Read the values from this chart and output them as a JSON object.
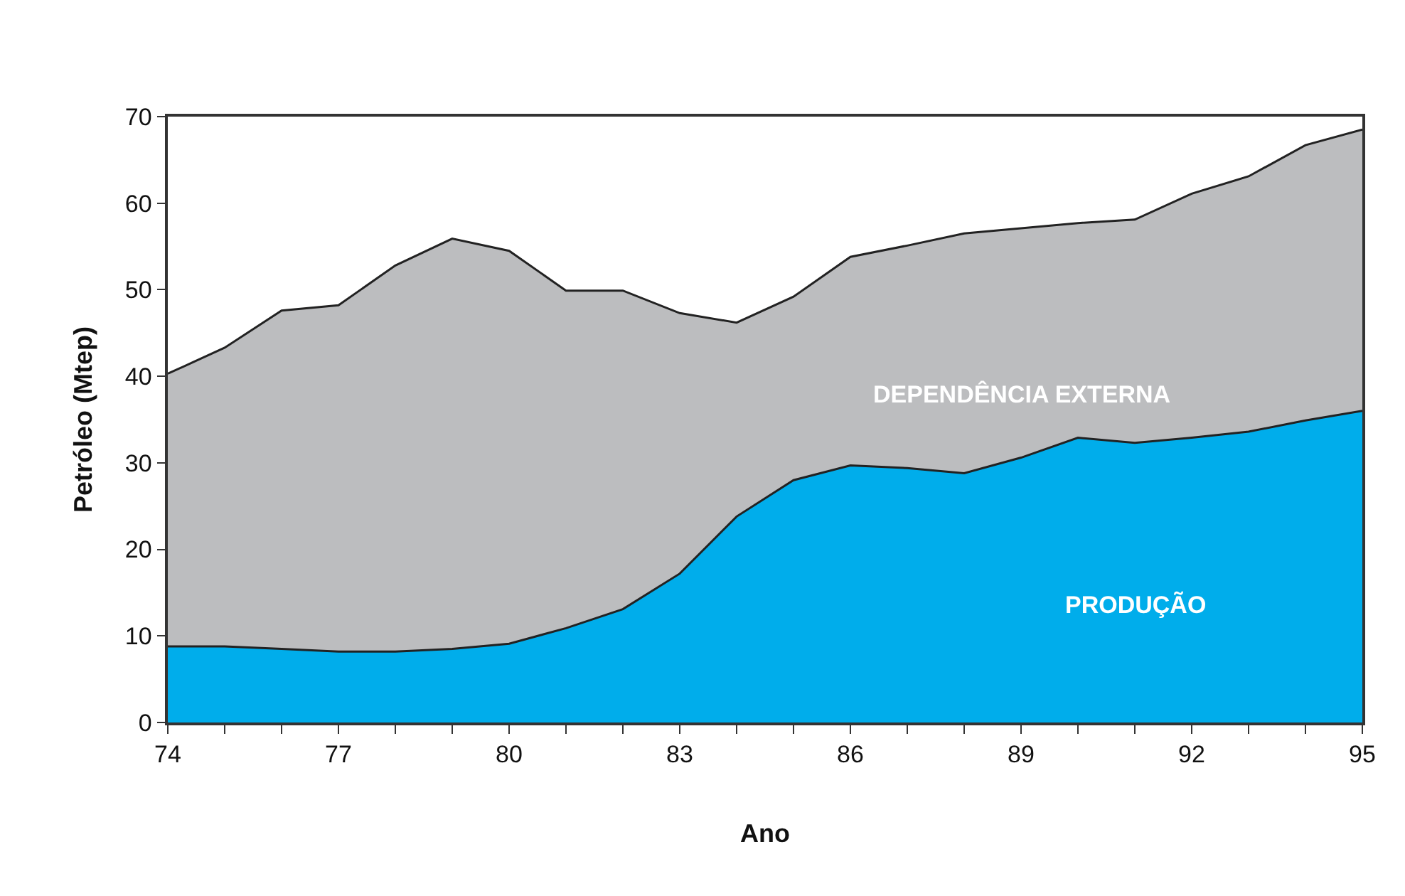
{
  "chart_data": {
    "type": "area",
    "stacked": true,
    "xlabel": "Ano",
    "ylabel": "Petróleo (Mtep)",
    "x": [
      74,
      75,
      76,
      77,
      78,
      79,
      80,
      81,
      82,
      83,
      84,
      85,
      86,
      87,
      88,
      89,
      90,
      91,
      92,
      93,
      94,
      95
    ],
    "series": [
      {
        "name": "PRODUÇÃO",
        "color": "#00adeb",
        "values": [
          8.8,
          8.8,
          8.5,
          8.2,
          8.2,
          8.5,
          9.1,
          10.9,
          13.1,
          17.2,
          23.8,
          28.0,
          29.7,
          29.4,
          28.8,
          30.6,
          32.9,
          32.3,
          32.9,
          33.6,
          34.9,
          36.0
        ]
      },
      {
        "name": "DEPENDÊNCIA EXTERNA",
        "color": "#bcbdbf",
        "values": [
          31.5,
          34.5,
          39.1,
          40.0,
          44.6,
          47.4,
          45.4,
          39.0,
          36.8,
          30.1,
          22.4,
          21.2,
          24.1,
          25.7,
          27.7,
          26.5,
          24.8,
          25.8,
          28.2,
          29.5,
          31.8,
          32.5
        ]
      }
    ],
    "xlim": [
      74,
      95
    ],
    "xticks": [
      74,
      77,
      80,
      83,
      86,
      89,
      92,
      95
    ],
    "ylim": [
      0,
      70
    ],
    "yticks": [
      0,
      10,
      20,
      30,
      40,
      50,
      60,
      70
    ],
    "legend": false,
    "line_style": "solid",
    "marker": "none"
  }
}
